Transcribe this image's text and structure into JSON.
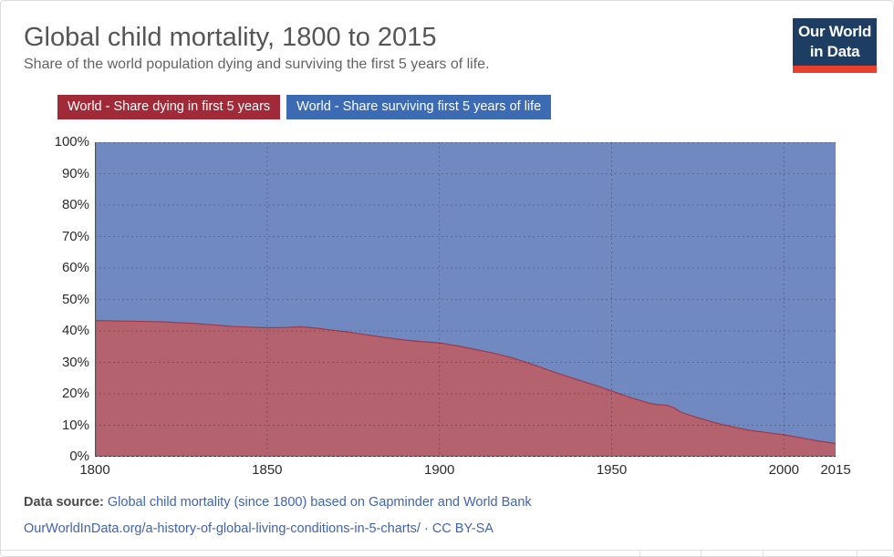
{
  "header": {
    "title": "Global child mortality, 1800 to 2015",
    "subtitle": "Share of the world population dying and surviving the first 5 years of life."
  },
  "logo": {
    "line1": "Our World",
    "line2": "in Data",
    "bg_color": "#1d3d63",
    "bar_color": "#e8402d"
  },
  "legend": {
    "items": [
      {
        "label": "World - Share dying in first 5 years",
        "color": "#a02a38"
      },
      {
        "label": "World - Share surviving first 5 years of life",
        "color": "#3d6bb3"
      }
    ]
  },
  "footer": {
    "source_label": "Data source:",
    "source_link": "Global child mortality (since 1800) based on Gapminder and World Bank",
    "url": "OurWorldInData.org/a-history-of-global-living-conditions-in-5-charts/",
    "dot": "·",
    "license": "CC BY-SA"
  },
  "chart_data": {
    "type": "area",
    "stacked": true,
    "title": "Global child mortality, 1800 to 2015",
    "xlabel": "",
    "ylabel": "",
    "xlim": [
      1800,
      2015
    ],
    "ylim": [
      0,
      100
    ],
    "grid": "dashed",
    "legend_position": "top",
    "x": [
      1800,
      1810,
      1820,
      1830,
      1840,
      1850,
      1855,
      1860,
      1865,
      1870,
      1875,
      1880,
      1885,
      1890,
      1895,
      1900,
      1905,
      1910,
      1915,
      1920,
      1925,
      1930,
      1935,
      1940,
      1945,
      1950,
      1955,
      1958,
      1961,
      1963,
      1966,
      1968,
      1970,
      1975,
      1980,
      1985,
      1990,
      1995,
      2000,
      2005,
      2010,
      2015
    ],
    "series": [
      {
        "name": "World - Share dying in first 5 years",
        "color": "#a02a38",
        "fill": "#b4626d",
        "values": [
          43.3,
          43.1,
          42.9,
          42.3,
          41.4,
          41.0,
          41.1,
          41.3,
          40.8,
          40.1,
          39.4,
          38.6,
          37.8,
          37.1,
          36.6,
          36.2,
          35.3,
          34.2,
          33.1,
          31.8,
          30.1,
          28.2,
          26.3,
          24.5,
          22.8,
          20.9,
          19.0,
          18.0,
          17.0,
          16.6,
          16.4,
          15.6,
          14.2,
          12.4,
          10.8,
          9.5,
          8.4,
          7.7,
          7.0,
          6.0,
          5.0,
          4.2
        ]
      },
      {
        "name": "World - Share surviving first 5 years of life",
        "color": "#3d6bb3",
        "fill": "#7089c1",
        "values": [
          56.7,
          56.9,
          57.1,
          57.7,
          58.6,
          59.0,
          58.9,
          58.7,
          59.2,
          59.9,
          60.6,
          61.4,
          62.2,
          62.9,
          63.4,
          63.8,
          64.7,
          65.8,
          66.9,
          68.2,
          69.9,
          71.8,
          73.7,
          75.5,
          77.2,
          79.1,
          81.0,
          82.0,
          83.0,
          83.4,
          83.6,
          84.4,
          85.8,
          87.6,
          89.2,
          90.5,
          91.6,
          92.3,
          93.0,
          94.0,
          95.0,
          95.8
        ]
      }
    ],
    "yticks": [
      "0%",
      "10%",
      "20%",
      "30%",
      "40%",
      "50%",
      "60%",
      "70%",
      "80%",
      "90%",
      "100%"
    ],
    "xticks": [
      "1800",
      "1850",
      "1900",
      "1950",
      "2000",
      "2015"
    ]
  }
}
